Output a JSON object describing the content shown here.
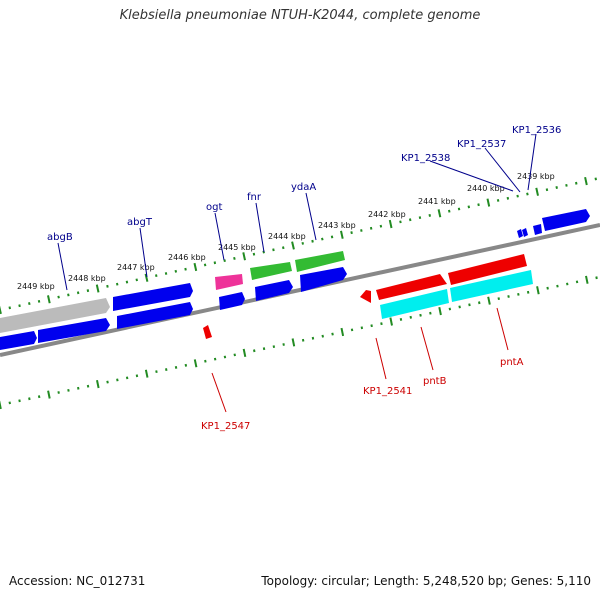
{
  "title": "Klebsiella pneumoniae NTUH-K2044, complete genome",
  "footer": {
    "accession": "Accession: NC_012731",
    "topology": "Topology: circular; Length: 5,248,520 bp; Genes: 5,110"
  },
  "colors": {
    "forward_label": "#00008b",
    "reverse_label": "#cc0000",
    "blue": "#0000ee",
    "green": "#33bb33",
    "pink": "#ee3399",
    "red": "#ee0000",
    "cyan": "#00eeee",
    "gray": "#bbbbbb",
    "backbone": "#888888",
    "ticks": "#228b22"
  },
  "kbp_labels": [
    "2449 kbp",
    "2448 kbp",
    "2447 kbp",
    "2446 kbp",
    "2445 kbp",
    "2444 kbp",
    "2443 kbp",
    "2442 kbp",
    "2441 kbp",
    "2440 kbp",
    "2439 kbp"
  ],
  "forward_gene_labels": [
    "abgB",
    "abgT",
    "ogt",
    "fnr",
    "ydaA",
    "KP1_2538",
    "KP1_2537",
    "KP1_2536"
  ],
  "reverse_gene_labels": [
    "KP1_2547",
    "KP1_2541",
    "pntB",
    "pntA"
  ]
}
